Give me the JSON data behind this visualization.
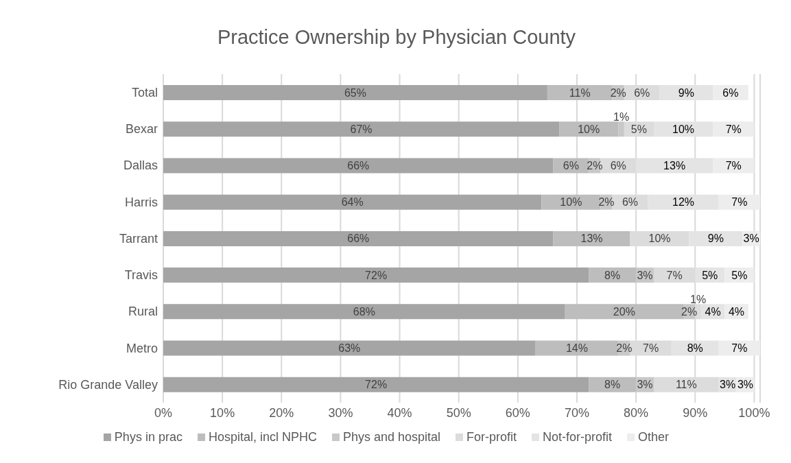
{
  "chart_data": {
    "type": "bar",
    "orientation": "horizontal",
    "stacked": true,
    "title": "Practice Ownership by Physician County",
    "categories": [
      "Total",
      "Bexar",
      "Dallas",
      "Harris",
      "Tarrant",
      "Travis",
      "Rural",
      "Metro",
      "Rio Grande Valley"
    ],
    "series": [
      {
        "name": "Phys in prac",
        "color": "#a5a5a5",
        "values": [
          65,
          67,
          66,
          64,
          66,
          72,
          68,
          63,
          72
        ],
        "value_labels": [
          "65%",
          "67%",
          "66%",
          "64%",
          "66%",
          "72%",
          "68%",
          "63%",
          "72%"
        ]
      },
      {
        "name": "Hospital, incl NPHC",
        "color": "#bdbdbd",
        "values": [
          11,
          10,
          6,
          10,
          13,
          8,
          20,
          14,
          8
        ],
        "value_labels": [
          "11%",
          "10%",
          "6%",
          "10%",
          "13%",
          "8%",
          "20%",
          "14%",
          "8%"
        ]
      },
      {
        "name": "Phys and hospital",
        "color": "#c8c8c8",
        "values": [
          2,
          1,
          2,
          2,
          null,
          3,
          2,
          2,
          3
        ],
        "value_labels": [
          "2%",
          "1%",
          "2%",
          "2%",
          null,
          "3%",
          "2%",
          "2%",
          "3%"
        ]
      },
      {
        "name": "For-profit",
        "color": "#dcdcdc",
        "values": [
          6,
          5,
          6,
          6,
          10,
          7,
          1,
          7,
          11
        ],
        "value_labels": [
          "6%",
          "5%",
          "6%",
          "6%",
          "10%",
          "7%",
          "1%",
          "7%",
          "11%"
        ]
      },
      {
        "name": "Not-for-profit",
        "color": "#e4e4e4",
        "values": [
          9,
          10,
          13,
          12,
          9,
          5,
          4,
          8,
          3
        ],
        "value_labels": [
          "9%",
          "10%",
          "13%",
          "12%",
          "9%",
          "5%",
          "4%",
          "8%",
          "3%"
        ]
      },
      {
        "name": "Other",
        "color": "#ededed",
        "values": [
          6,
          7,
          7,
          7,
          3,
          5,
          4,
          7,
          3
        ],
        "value_labels": [
          "6%",
          "7%",
          "7%",
          "7%",
          "3%",
          "5%",
          "4%",
          "7%",
          "3%"
        ]
      }
    ],
    "xlim": [
      0,
      101
    ],
    "xticks": [
      {
        "value": 0,
        "label": "0%"
      },
      {
        "value": 10,
        "label": "10%"
      },
      {
        "value": 20,
        "label": "20%"
      },
      {
        "value": 30,
        "label": "30%"
      },
      {
        "value": 40,
        "label": "40%"
      },
      {
        "value": 50,
        "label": "50%"
      },
      {
        "value": 60,
        "label": "60%"
      },
      {
        "value": 70,
        "label": "70%"
      },
      {
        "value": 80,
        "label": "80%"
      },
      {
        "value": 90,
        "label": "90%"
      },
      {
        "value": 100,
        "label": "100%"
      }
    ],
    "grid": "x",
    "legend": "bottom"
  }
}
